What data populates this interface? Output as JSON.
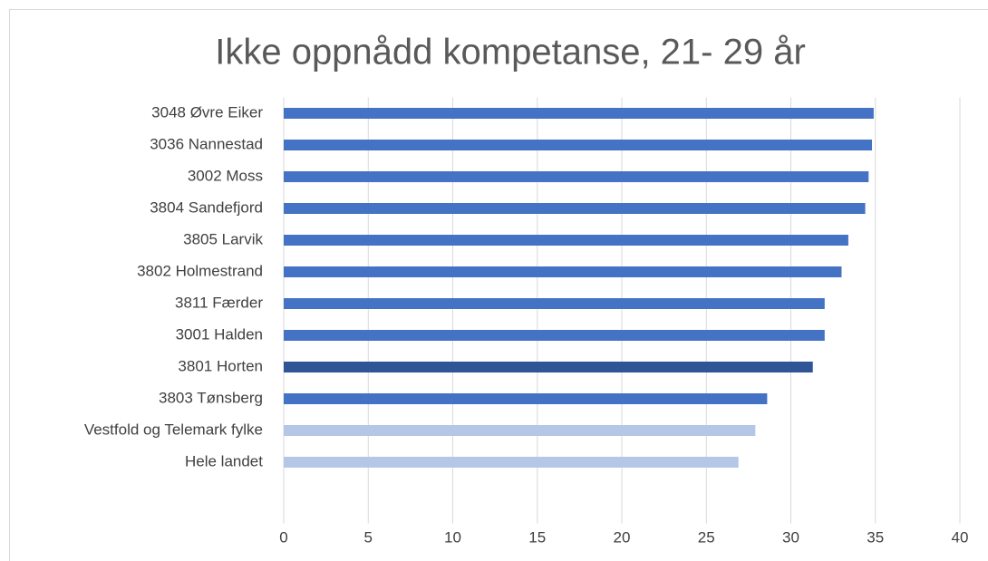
{
  "chart_data": {
    "type": "barh",
    "title": "Ikke oppnådd kompetanse, 21- 29 år",
    "categories": [
      "3048 Øvre Eiker",
      "3036 Nannestad",
      "3002 Moss",
      "3804 Sandefjord",
      "3805 Larvik",
      "3802 Holmestrand",
      "3811 Færder",
      "3001 Halden",
      "3801 Horten",
      "3803 Tønsberg",
      "Vestfold og Telemark fylke",
      "Hele landet"
    ],
    "values": [
      34.9,
      34.8,
      34.6,
      34.4,
      33.4,
      33.0,
      32.0,
      32.0,
      31.3,
      28.6,
      27.9,
      26.9
    ],
    "colors": [
      "#4472c4",
      "#4472c4",
      "#4472c4",
      "#4472c4",
      "#4472c4",
      "#4472c4",
      "#4472c4",
      "#4472c4",
      "#2f5597",
      "#4472c4",
      "#b4c7e7",
      "#b4c7e7"
    ],
    "xlim": [
      0,
      40
    ],
    "xticks": [
      0,
      5,
      10,
      15,
      20,
      25,
      30,
      35,
      40
    ],
    "grid": true
  }
}
